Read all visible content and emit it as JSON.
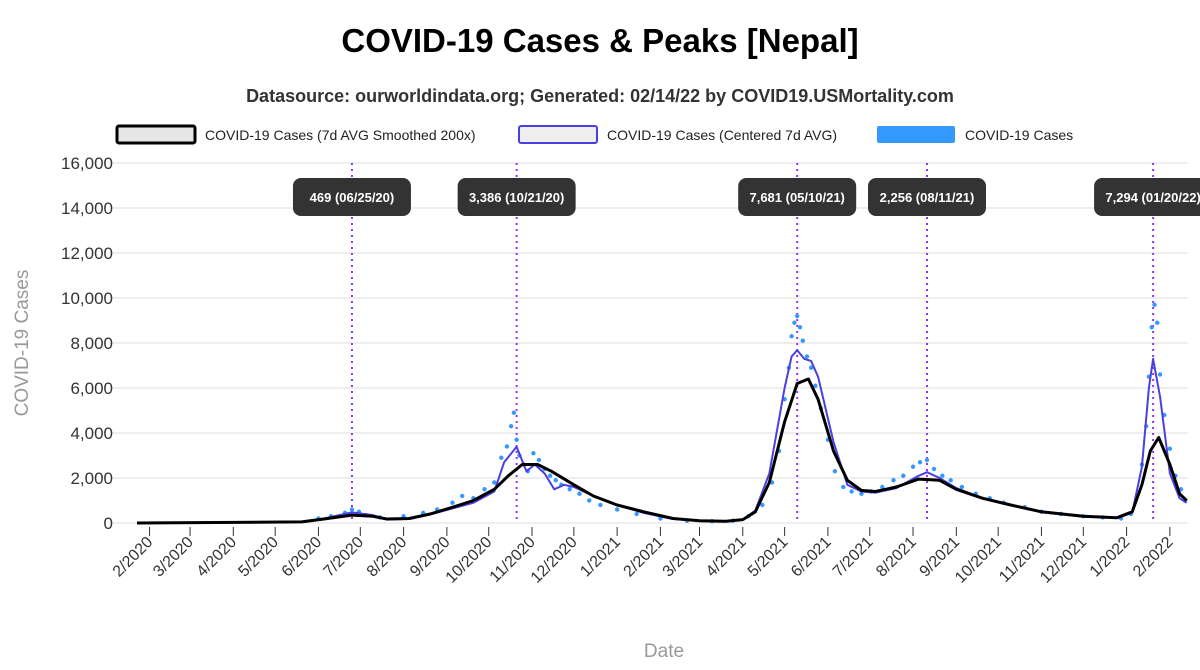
{
  "title": "COVID-19 Cases & Peaks [Nepal]",
  "subtitle": "Datasource: ourworldindata.org; Generated: 02/14/22 by COVID19.USMortality.com",
  "colors": {
    "smoothed": "#000000",
    "centered": "#4a3fe0",
    "cases": "#3399ff",
    "peak_line": "#9b30ff",
    "peak_label_bg": "#333333",
    "grid": "#dddddd"
  },
  "chart_data": {
    "type": "line",
    "title": "COVID-19 Cases & Peaks [Nepal]",
    "xlabel": "Date",
    "ylabel": "COVID-19 Cases",
    "ylim": [
      0,
      16000
    ],
    "yticks": [
      0,
      2000,
      4000,
      6000,
      8000,
      10000,
      12000,
      14000,
      16000
    ],
    "ytick_labels": [
      "0",
      "2,000",
      "4,000",
      "6,000",
      "8,000",
      "10,000",
      "12,000",
      "14,000",
      "16,000"
    ],
    "xlim": [
      "2020-01-23",
      "2022-02-14"
    ],
    "xticks": [
      "2020-02-01",
      "2020-03-01",
      "2020-04-01",
      "2020-05-01",
      "2020-06-01",
      "2020-07-01",
      "2020-08-01",
      "2020-09-01",
      "2020-10-01",
      "2020-11-01",
      "2020-12-01",
      "2021-01-01",
      "2021-02-01",
      "2021-03-01",
      "2021-04-01",
      "2021-05-01",
      "2021-06-01",
      "2021-07-01",
      "2021-08-01",
      "2021-09-01",
      "2021-10-01",
      "2021-11-01",
      "2021-12-01",
      "2022-01-01",
      "2022-02-01"
    ],
    "xtick_labels": [
      "2/2020",
      "3/2020",
      "4/2020",
      "5/2020",
      "6/2020",
      "7/2020",
      "8/2020",
      "9/2020",
      "10/2020",
      "11/2020",
      "12/2020",
      "1/2021",
      "2/2021",
      "3/2021",
      "4/2021",
      "5/2021",
      "6/2021",
      "7/2021",
      "8/2021",
      "9/2021",
      "10/2021",
      "11/2021",
      "12/2021",
      "1/2022",
      "2/2022"
    ],
    "grid": true,
    "legend_position": "top",
    "series": [
      {
        "name": "COVID-19 Cases (7d AVG Smoothed 200x)",
        "style": "line",
        "x": [
          "2020-01-23",
          "2020-05-20",
          "2020-06-05",
          "2020-06-25",
          "2020-07-10",
          "2020-07-20",
          "2020-08-05",
          "2020-08-20",
          "2020-09-05",
          "2020-09-20",
          "2020-10-05",
          "2020-10-15",
          "2020-10-25",
          "2020-11-05",
          "2020-11-15",
          "2020-12-01",
          "2020-12-15",
          "2021-01-01",
          "2021-01-20",
          "2021-02-10",
          "2021-03-01",
          "2021-03-20",
          "2021-04-01",
          "2021-04-10",
          "2021-04-20",
          "2021-05-01",
          "2021-05-10",
          "2021-05-18",
          "2021-05-25",
          "2021-06-05",
          "2021-06-15",
          "2021-06-25",
          "2021-07-05",
          "2021-07-20",
          "2021-08-05",
          "2021-08-20",
          "2021-09-01",
          "2021-09-20",
          "2021-10-10",
          "2021-11-01",
          "2021-12-01",
          "2021-12-25",
          "2022-01-05",
          "2022-01-12",
          "2022-01-18",
          "2022-01-24",
          "2022-02-01",
          "2022-02-08",
          "2022-02-13"
        ],
        "values": [
          0,
          50,
          180,
          350,
          300,
          180,
          200,
          400,
          700,
          1000,
          1500,
          2100,
          2600,
          2600,
          2300,
          1700,
          1200,
          800,
          500,
          200,
          100,
          80,
          150,
          500,
          1800,
          4500,
          6200,
          6400,
          5500,
          3200,
          1900,
          1450,
          1400,
          1600,
          1950,
          1900,
          1500,
          1100,
          800,
          500,
          300,
          230,
          500,
          1700,
          3200,
          3800,
          2600,
          1300,
          1000
        ]
      },
      {
        "name": "COVID-19 Cases (Centered 7d AVG)",
        "style": "line",
        "x": [
          "2020-01-23",
          "2020-05-20",
          "2020-06-05",
          "2020-06-25",
          "2020-07-10",
          "2020-07-20",
          "2020-08-05",
          "2020-08-20",
          "2020-09-05",
          "2020-09-20",
          "2020-10-05",
          "2020-10-12",
          "2020-10-21",
          "2020-10-28",
          "2020-11-03",
          "2020-11-10",
          "2020-11-17",
          "2020-11-24",
          "2020-12-01",
          "2020-12-15",
          "2021-01-01",
          "2021-01-20",
          "2021-02-10",
          "2021-03-01",
          "2021-03-20",
          "2021-04-01",
          "2021-04-10",
          "2021-04-20",
          "2021-05-01",
          "2021-05-06",
          "2021-05-10",
          "2021-05-15",
          "2021-05-20",
          "2021-05-25",
          "2021-06-05",
          "2021-06-15",
          "2021-06-25",
          "2021-07-05",
          "2021-07-20",
          "2021-08-05",
          "2021-08-11",
          "2021-08-20",
          "2021-09-01",
          "2021-09-20",
          "2021-10-10",
          "2021-11-01",
          "2021-12-01",
          "2021-12-25",
          "2022-01-05",
          "2022-01-12",
          "2022-01-17",
          "2022-01-20",
          "2022-01-25",
          "2022-02-01",
          "2022-02-08",
          "2022-02-13"
        ],
        "values": [
          0,
          60,
          200,
          469,
          350,
          150,
          180,
          380,
          650,
          900,
          1400,
          2700,
          3386,
          2300,
          2600,
          2200,
          1500,
          1700,
          1600,
          1200,
          800,
          450,
          180,
          100,
          80,
          150,
          550,
          2200,
          6000,
          7400,
          7681,
          7300,
          7200,
          6500,
          3600,
          1700,
          1400,
          1350,
          1550,
          2100,
          2256,
          2000,
          1550,
          1100,
          800,
          480,
          280,
          230,
          450,
          2500,
          6000,
          7294,
          5600,
          2200,
          1100,
          900
        ]
      },
      {
        "name": "COVID-19 Cases",
        "style": "scatter",
        "x": [
          "2020-06-01",
          "2020-06-10",
          "2020-06-20",
          "2020-06-25",
          "2020-06-30",
          "2020-07-05",
          "2020-07-15",
          "2020-08-01",
          "2020-08-15",
          "2020-08-25",
          "2020-09-05",
          "2020-09-12",
          "2020-09-20",
          "2020-09-28",
          "2020-10-05",
          "2020-10-10",
          "2020-10-14",
          "2020-10-17",
          "2020-10-19",
          "2020-10-21",
          "2020-10-23",
          "2020-10-26",
          "2020-10-29",
          "2020-11-02",
          "2020-11-06",
          "2020-11-10",
          "2020-11-14",
          "2020-11-18",
          "2020-11-22",
          "2020-11-28",
          "2020-12-05",
          "2020-12-12",
          "2020-12-20",
          "2021-01-01",
          "2021-01-15",
          "2021-02-01",
          "2021-02-20",
          "2021-03-10",
          "2021-03-25",
          "2021-04-05",
          "2021-04-15",
          "2021-04-22",
          "2021-04-27",
          "2021-05-01",
          "2021-05-04",
          "2021-05-06",
          "2021-05-08",
          "2021-05-10",
          "2021-05-12",
          "2021-05-14",
          "2021-05-17",
          "2021-05-20",
          "2021-05-23",
          "2021-05-27",
          "2021-06-01",
          "2021-06-06",
          "2021-06-12",
          "2021-06-18",
          "2021-06-25",
          "2021-07-02",
          "2021-07-10",
          "2021-07-18",
          "2021-07-25",
          "2021-08-01",
          "2021-08-06",
          "2021-08-11",
          "2021-08-16",
          "2021-08-22",
          "2021-08-28",
          "2021-09-05",
          "2021-09-15",
          "2021-09-25",
          "2021-10-05",
          "2021-10-20",
          "2021-11-01",
          "2021-11-15",
          "2021-12-01",
          "2021-12-15",
          "2021-12-28",
          "2022-01-04",
          "2022-01-08",
          "2022-01-12",
          "2022-01-15",
          "2022-01-17",
          "2022-01-19",
          "2022-01-21",
          "2022-01-23",
          "2022-01-25",
          "2022-01-28",
          "2022-02-01",
          "2022-02-05",
          "2022-02-09",
          "2022-02-12"
        ],
        "values": [
          200,
          300,
          450,
          600,
          500,
          350,
          250,
          300,
          450,
          600,
          900,
          1200,
          1100,
          1500,
          1800,
          2900,
          3400,
          4300,
          4900,
          3700,
          3000,
          2600,
          2300,
          3100,
          2800,
          2400,
          2100,
          1900,
          1700,
          1500,
          1300,
          1000,
          800,
          600,
          400,
          200,
          100,
          80,
          100,
          300,
          800,
          1800,
          3200,
          5500,
          6900,
          8300,
          8900,
          9200,
          8700,
          8100,
          7400,
          6900,
          6100,
          5100,
          3700,
          2300,
          1600,
          1400,
          1300,
          1400,
          1600,
          1900,
          2100,
          2500,
          2700,
          2800,
          2400,
          2100,
          1900,
          1600,
          1300,
          1100,
          900,
          700,
          500,
          400,
          300,
          250,
          200,
          400,
          1100,
          2600,
          4300,
          6500,
          8700,
          9700,
          8900,
          6600,
          4800,
          3300,
          2100,
          1500,
          1000
        ]
      }
    ],
    "annotations": [
      {
        "date": "2020-06-25",
        "label": "469 (06/25/20)"
      },
      {
        "date": "2020-10-21",
        "label": "3,386 (10/21/20)"
      },
      {
        "date": "2021-05-10",
        "label": "7,681 (05/10/21)"
      },
      {
        "date": "2021-08-11",
        "label": "2,256 (08/11/21)"
      },
      {
        "date": "2022-01-20",
        "label": "7,294 (01/20/22)"
      }
    ]
  }
}
